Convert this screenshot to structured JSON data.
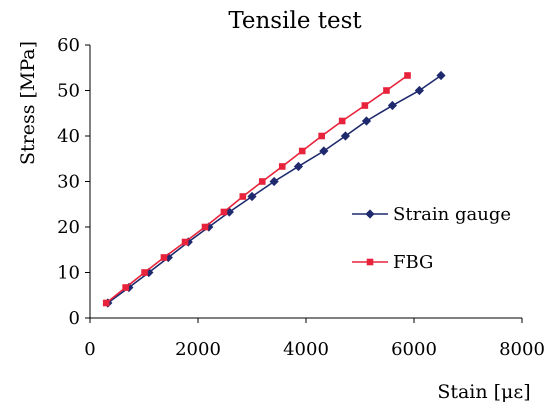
{
  "chart_data": {
    "type": "line",
    "title": "Tensile test",
    "xlabel": "Stain [με]",
    "ylabel": "Stress [MPa]",
    "xlim": [
      0,
      8000
    ],
    "ylim": [
      0,
      60
    ],
    "xticks": [
      0,
      2000,
      4000,
      6000,
      8000
    ],
    "yticks": [
      0,
      10,
      20,
      30,
      40,
      50,
      60
    ],
    "grid": false,
    "legend_position": "right",
    "series": [
      {
        "name": "Strain gauge",
        "color": "#1f2a6e",
        "marker": "diamond",
        "x": [
          330,
          720,
          1090,
          1450,
          1820,
          2200,
          2580,
          3000,
          3410,
          3860,
          4330,
          4730,
          5120,
          5600,
          6100,
          6500
        ],
        "y": [
          3.3,
          6.7,
          10,
          13.3,
          16.7,
          20,
          23.3,
          26.7,
          30,
          33.3,
          36.7,
          40,
          43.3,
          46.7,
          50,
          53.3
        ]
      },
      {
        "name": "FBG",
        "color": "#e8223a",
        "marker": "square",
        "x": [
          300,
          660,
          1010,
          1370,
          1760,
          2130,
          2480,
          2830,
          3190,
          3560,
          3930,
          4290,
          4670,
          5090,
          5490,
          5880
        ],
        "y": [
          3.3,
          6.7,
          10,
          13.3,
          16.7,
          20,
          23.3,
          26.7,
          30,
          33.3,
          36.7,
          40,
          43.3,
          46.7,
          50,
          53.3
        ]
      }
    ]
  }
}
